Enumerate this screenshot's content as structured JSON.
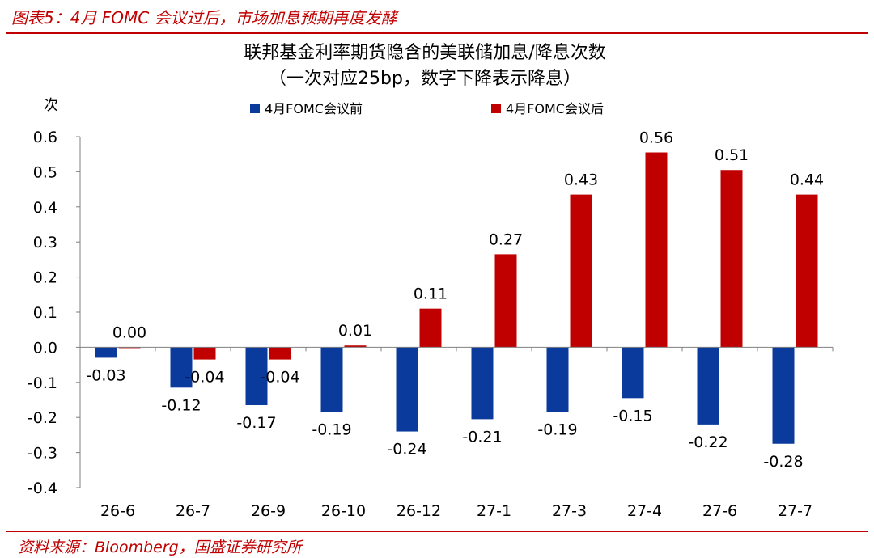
{
  "figure_title": "图表5：4月 FOMC 会议过后，市场加息预期再度发酵",
  "source": "资料来源：Bloomberg，国盛证券研究所",
  "colors": {
    "accent": "#c00000",
    "series_before": "#0a3a9c",
    "series_after": "#c00000",
    "axis": "#808080"
  },
  "chart_data": {
    "type": "bar",
    "title": "联邦基金利率期货隐含的美联储加息/降息次数",
    "subtitle": "（一次对应25bp，数字下降表示降息）",
    "xlabel": "",
    "ylabel": "次",
    "ylim": [
      -0.4,
      0.6
    ],
    "yticks": [
      "0.6",
      "0.5",
      "0.4",
      "0.3",
      "0.2",
      "0.1",
      "0.0",
      "-0.1",
      "-0.2",
      "-0.3",
      "-0.4"
    ],
    "ytick_values": [
      0.6,
      0.5,
      0.4,
      0.3,
      0.2,
      0.1,
      0.0,
      -0.1,
      -0.2,
      -0.3,
      -0.4
    ],
    "grid": false,
    "legend_position": "top",
    "categories": [
      "26-6",
      "26-7",
      "26-9",
      "26-10",
      "26-12",
      "27-1",
      "27-3",
      "27-4",
      "27-6",
      "27-7"
    ],
    "series": [
      {
        "name": "4月FOMC会议前",
        "values": [
          -0.03,
          -0.115,
          -0.165,
          -0.185,
          -0.24,
          -0.205,
          -0.185,
          -0.145,
          -0.22,
          -0.275
        ],
        "labels": [
          "-0.03",
          "-0.12",
          "-0.17",
          "-0.19",
          "-0.24",
          "-0.21",
          "-0.19",
          "-0.15",
          "-0.22",
          "-0.28"
        ]
      },
      {
        "name": "4月FOMC会议后",
        "values": [
          0.0,
          -0.035,
          -0.035,
          0.005,
          0.11,
          0.265,
          0.435,
          0.555,
          0.505,
          0.435
        ],
        "labels": [
          "0.00",
          "-0.04",
          "-0.04",
          "0.01",
          "0.11",
          "0.27",
          "0.43",
          "0.56",
          "0.51",
          "0.44"
        ]
      }
    ]
  }
}
